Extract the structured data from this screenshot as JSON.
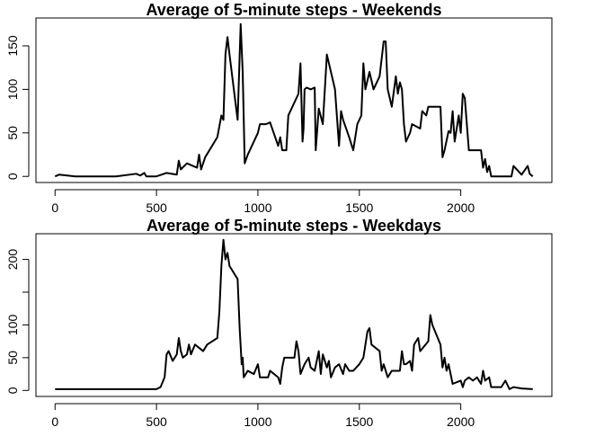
{
  "chart_data": [
    {
      "type": "line",
      "title": "Average of 5-minute steps - Weekends",
      "x": [
        0,
        20,
        100,
        300,
        400,
        420,
        440,
        450,
        500,
        550,
        600,
        610,
        620,
        650,
        700,
        710,
        720,
        740,
        800,
        820,
        830,
        840,
        850,
        860,
        900,
        915,
        925,
        935,
        950,
        1000,
        1010,
        1040,
        1060,
        1100,
        1110,
        1120,
        1140,
        1150,
        1200,
        1210,
        1220,
        1225,
        1230,
        1240,
        1260,
        1280,
        1285,
        1300,
        1320,
        1340,
        1360,
        1380,
        1400,
        1410,
        1420,
        1450,
        1470,
        1490,
        1510,
        1520,
        1530,
        1550,
        1570,
        1600,
        1620,
        1630,
        1640,
        1650,
        1660,
        1680,
        1690,
        1700,
        1710,
        1720,
        1730,
        1750,
        1760,
        1800,
        1810,
        1830,
        1840,
        1900,
        1910,
        1920,
        1940,
        1950,
        1960,
        1970,
        1990,
        2000,
        2010,
        2020,
        2030,
        2040,
        2100,
        2110,
        2120,
        2130,
        2140,
        2150,
        2200,
        2250,
        2260,
        2300,
        2330,
        2340,
        2355
      ],
      "series": [
        {
          "color": "#000000",
          "values": [
            0,
            2,
            0,
            0,
            3,
            1,
            4,
            0,
            0,
            4,
            2,
            18,
            8,
            15,
            10,
            25,
            8,
            22,
            45,
            70,
            65,
            140,
            160,
            140,
            65,
            175,
            120,
            15,
            25,
            50,
            60,
            60,
            62,
            35,
            45,
            30,
            30,
            70,
            95,
            130,
            40,
            55,
            100,
            102,
            100,
            102,
            30,
            78,
            60,
            140,
            120,
            100,
            35,
            75,
            65,
            45,
            30,
            60,
            70,
            130,
            100,
            120,
            100,
            115,
            155,
            155,
            100,
            90,
            80,
            115,
            95,
            108,
            100,
            60,
            40,
            50,
            60,
            55,
            75,
            70,
            80,
            80,
            22,
            30,
            52,
            50,
            75,
            40,
            70,
            50,
            95,
            90,
            60,
            30,
            30,
            10,
            20,
            5,
            12,
            0,
            0,
            0,
            12,
            2,
            12,
            3,
            0
          ]
        }
      ],
      "xlim": [
        -94.2,
        2449.2
      ],
      "xticks": [
        0,
        500,
        1000,
        1500,
        2000
      ],
      "ylim": [
        -7,
        182
      ],
      "yticks": [
        0,
        50,
        100,
        150
      ]
    },
    {
      "type": "line",
      "title": "Average of 5-minute steps - Weekdays",
      "x": [
        0,
        100,
        200,
        300,
        400,
        500,
        520,
        540,
        550,
        560,
        580,
        600,
        610,
        620,
        630,
        650,
        660,
        670,
        690,
        710,
        730,
        750,
        800,
        810,
        820,
        830,
        840,
        850,
        860,
        900,
        910,
        920,
        925,
        930,
        950,
        980,
        1000,
        1010,
        1030,
        1050,
        1060,
        1100,
        1110,
        1120,
        1130,
        1150,
        1180,
        1190,
        1200,
        1210,
        1230,
        1250,
        1260,
        1280,
        1300,
        1310,
        1320,
        1340,
        1350,
        1360,
        1380,
        1400,
        1420,
        1430,
        1450,
        1470,
        1500,
        1520,
        1540,
        1550,
        1560,
        1600,
        1610,
        1620,
        1640,
        1660,
        1700,
        1710,
        1720,
        1730,
        1750,
        1760,
        1770,
        1790,
        1800,
        1840,
        1850,
        1860,
        1900,
        1910,
        1920,
        1930,
        1940,
        1960,
        2000,
        2010,
        2020,
        2040,
        2060,
        2080,
        2100,
        2110,
        2120,
        2140,
        2150,
        2200,
        2220,
        2240,
        2260,
        2300,
        2355
      ],
      "series": [
        {
          "color": "#000000",
          "values": [
            2,
            2,
            2,
            2,
            2,
            2,
            5,
            20,
            55,
            60,
            45,
            55,
            80,
            60,
            50,
            55,
            70,
            55,
            70,
            65,
            60,
            70,
            80,
            120,
            190,
            230,
            200,
            210,
            190,
            170,
            95,
            40,
            50,
            20,
            30,
            25,
            40,
            20,
            20,
            20,
            30,
            20,
            10,
            35,
            50,
            50,
            50,
            75,
            60,
            25,
            40,
            50,
            35,
            30,
            60,
            25,
            55,
            35,
            45,
            20,
            35,
            40,
            25,
            40,
            30,
            30,
            40,
            50,
            90,
            95,
            70,
            60,
            30,
            40,
            20,
            30,
            30,
            60,
            40,
            40,
            45,
            30,
            70,
            80,
            60,
            75,
            115,
            100,
            70,
            35,
            50,
            30,
            40,
            10,
            15,
            5,
            15,
            20,
            15,
            20,
            10,
            30,
            15,
            20,
            5,
            5,
            15,
            2,
            5,
            3,
            2
          ]
        }
      ],
      "xlim": [
        -94.2,
        2449.2
      ],
      "xticks": [
        0,
        500,
        1000,
        1500,
        2000
      ],
      "ylim": [
        -9.2,
        239.2
      ],
      "yticks": [
        0,
        50,
        100,
        {
          "value": 150,
          "label": null
        },
        200
      ]
    }
  ]
}
